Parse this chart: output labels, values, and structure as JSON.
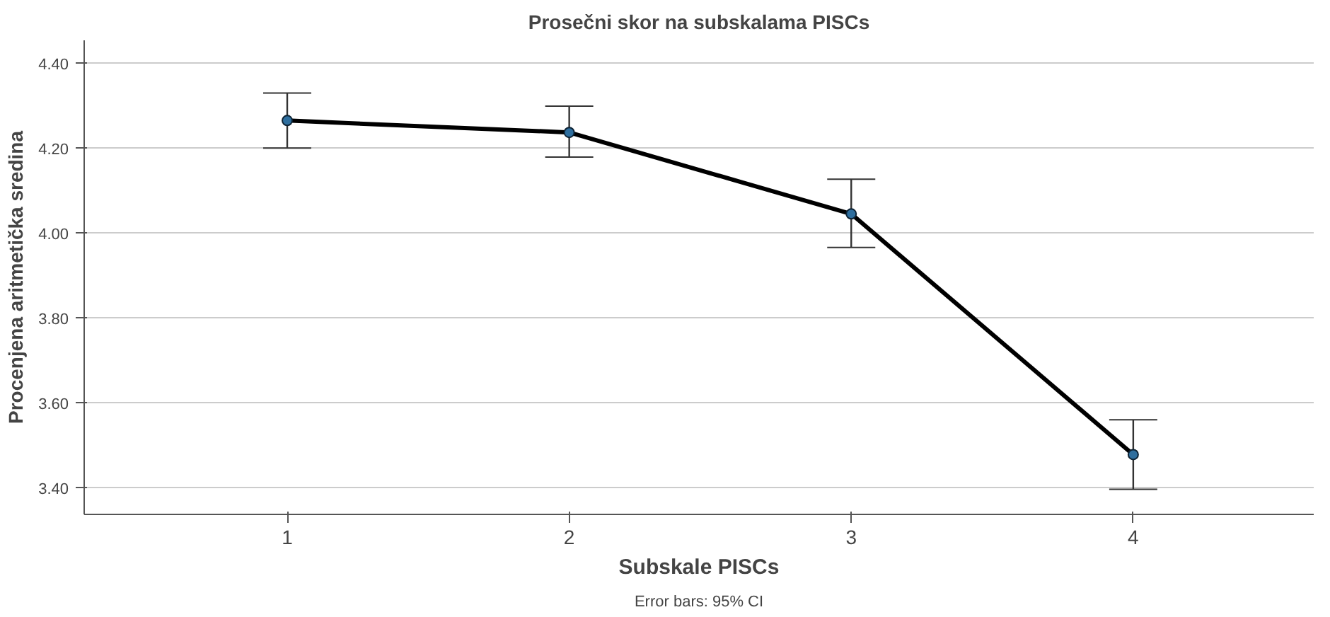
{
  "chart_data": {
    "type": "line",
    "title": "Prosečni skor na subskalama PISCs",
    "xlabel": "Subskale PISCs",
    "ylabel": "Procenjena aritmetička sredina",
    "categories": [
      "1",
      "2",
      "3",
      "4"
    ],
    "series": [
      {
        "color": "#000000",
        "values": [
          4.266,
          4.238,
          4.046,
          3.479
        ],
        "errors": [
          [
            4.201,
            4.331
          ],
          [
            4.18,
            4.3
          ],
          [
            3.967,
            4.128
          ],
          [
            3.397,
            3.561
          ]
        ]
      }
    ],
    "ylim": [
      3.338,
      4.455
    ],
    "yticks": [
      {
        "value": 3.4,
        "label": "3.40"
      },
      {
        "value": 3.6,
        "label": "3.60"
      },
      {
        "value": 3.8,
        "label": "3.80"
      },
      {
        "value": 4.0,
        "label": "4.00"
      },
      {
        "value": 4.2,
        "label": "4.20"
      },
      {
        "value": 4.4,
        "label": "4.40"
      }
    ],
    "grid": "y",
    "marker": "circle",
    "line_style": "solid",
    "annotations": [
      "Error bars: 95% CI"
    ]
  }
}
